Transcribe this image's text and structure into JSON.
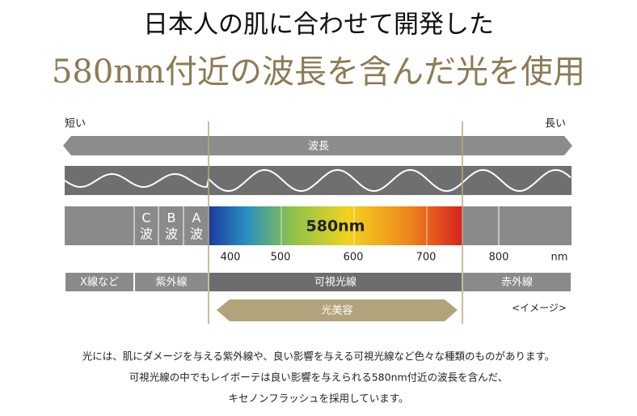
{
  "header": {
    "title": "日本人の肌に合わせて開発した",
    "subtitle": "580nm付近の波長を含んだ光を使用"
  },
  "diagram": {
    "short_label": "短い",
    "long_label": "長い",
    "wavelength_label": "波長",
    "uv_bands": [
      {
        "letter": "C",
        "wave": "波"
      },
      {
        "letter": "B",
        "wave": "波"
      },
      {
        "letter": "A",
        "wave": "波"
      }
    ],
    "peak_label": "580nm",
    "scale": [
      "400",
      "500",
      "600",
      "700",
      "800"
    ],
    "unit": "nm",
    "regions": [
      "X線など",
      "紫外線",
      "可視光線",
      "赤外線"
    ],
    "beauty_label": "光美容",
    "image_note": "<イメージ>"
  },
  "body": {
    "lines": [
      "光には、肌にダメージを与える紫外線や、良い影響を与える可視光線など色々な種類のものがあります。",
      "可視光線の中でもレイボーテは良い影響を与えられる580nm付近の波長を含んだ、",
      "キセノンフラッシュを採用しています。"
    ]
  }
}
